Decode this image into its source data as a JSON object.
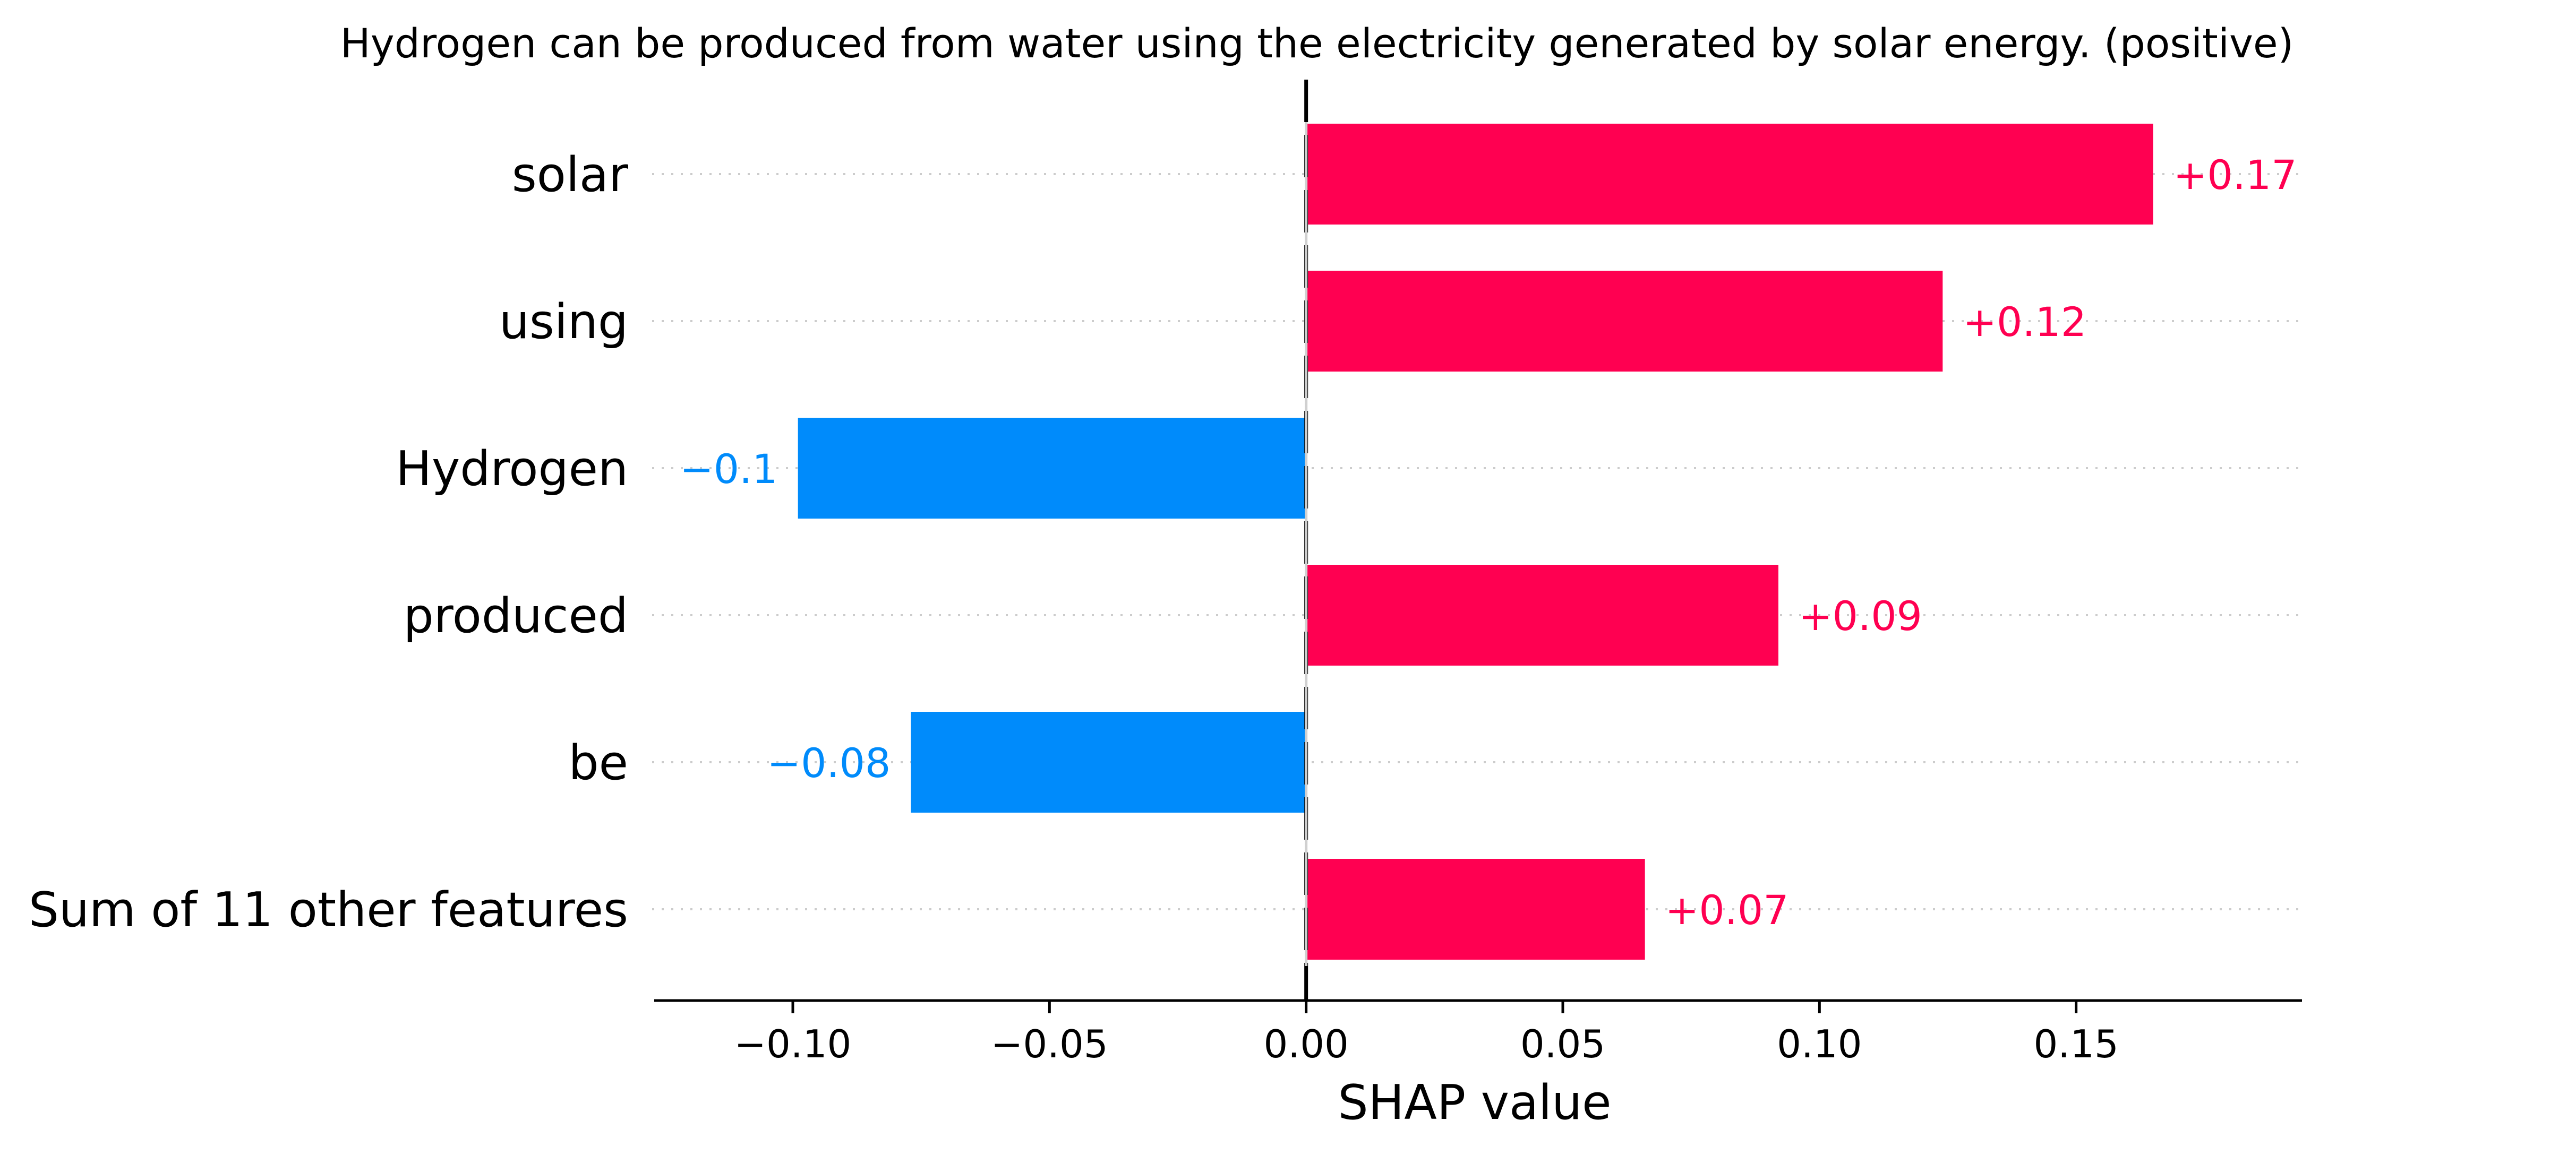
{
  "chart_data": {
    "type": "bar",
    "orientation": "horizontal",
    "title": "Hydrogen can be produced from water using the electricity generated by solar energy. (positive)",
    "xlabel": "SHAP value",
    "ylabel": "",
    "xlim": [
      -0.127,
      0.194
    ],
    "x_ticks": [
      -0.1,
      -0.05,
      0.0,
      0.05,
      0.1,
      0.15
    ],
    "x_tick_labels": [
      "−0.10",
      "−0.05",
      "0.00",
      "0.05",
      "0.10",
      "0.15"
    ],
    "categories": [
      "solar",
      "using",
      "Hydrogen",
      "produced",
      "be",
      "Sum of 11 other features"
    ],
    "values": [
      0.165,
      0.124,
      -0.099,
      0.092,
      -0.077,
      0.066
    ],
    "value_labels": [
      "+0.17",
      "+0.12",
      "−0.1",
      "+0.09",
      "−0.08",
      "+0.07"
    ],
    "grid": "dotted horizontal guides per row",
    "colors": {
      "positive": "#ff0051",
      "negative": "#008bfb",
      "text": "#000000",
      "guide": "#cccccc"
    }
  }
}
